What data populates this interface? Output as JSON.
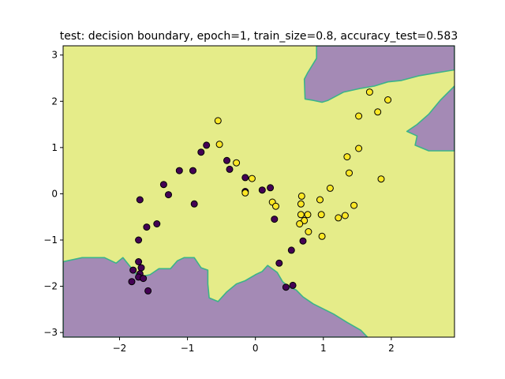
{
  "chart_data": {
    "type": "scatter",
    "title": "test: decision boundary, epoch=1, train_size=0.8, accuracy_test=0.583",
    "xlabel": "",
    "ylabel": "",
    "xlim": [
      -2.83,
      2.93
    ],
    "ylim": [
      -3.1,
      3.2
    ],
    "x_ticks": [
      -2,
      -1,
      0,
      1,
      2
    ],
    "x_tick_labels": [
      "−2",
      "−1",
      "0",
      "1",
      "2"
    ],
    "y_ticks": [
      -3,
      -2,
      -1,
      0,
      1,
      2,
      3
    ],
    "y_tick_labels": [
      "−3",
      "−2",
      "−1",
      "0",
      "1",
      "2",
      "3"
    ],
    "grid": false,
    "legend": "none",
    "colors": {
      "class_0_region": "#a48ab5",
      "class_1_region": "#e5ec89",
      "boundary": "#3bb38a",
      "class_0_point": "#440154",
      "class_1_point": "#fde725",
      "point_edge": "#000000"
    },
    "decision_regions": [
      {
        "class": 0,
        "polygon": [
          [
            0.9,
            3.2
          ],
          [
            2.93,
            3.2
          ],
          [
            2.93,
            2.68
          ],
          [
            2.68,
            2.62
          ],
          [
            2.4,
            2.55
          ],
          [
            2.15,
            2.45
          ],
          [
            1.95,
            2.42
          ],
          [
            1.75,
            2.33
          ],
          [
            1.55,
            2.28
          ],
          [
            1.3,
            2.2
          ],
          [
            1.07,
            2.02
          ],
          [
            0.98,
            1.98
          ],
          [
            0.85,
            2.02
          ],
          [
            0.73,
            2.05
          ],
          [
            0.72,
            2.48
          ],
          [
            0.77,
            2.62
          ],
          [
            0.9,
            2.93
          ]
        ]
      },
      {
        "class": 0,
        "polygon": [
          [
            2.93,
            2.33
          ],
          [
            2.72,
            2.02
          ],
          [
            2.55,
            1.72
          ],
          [
            2.38,
            1.5
          ],
          [
            2.23,
            1.35
          ],
          [
            2.38,
            1.25
          ],
          [
            2.35,
            1.05
          ],
          [
            2.55,
            0.93
          ],
          [
            2.93,
            0.93
          ]
        ]
      },
      {
        "class": 0,
        "polygon": [
          [
            -2.83,
            -1.47
          ],
          [
            -2.55,
            -1.38
          ],
          [
            -2.22,
            -1.38
          ],
          [
            -2.05,
            -1.5
          ],
          [
            -1.95,
            -1.38
          ],
          [
            -1.72,
            -1.8
          ],
          [
            -1.55,
            -1.75
          ],
          [
            -1.42,
            -1.62
          ],
          [
            -1.25,
            -1.62
          ],
          [
            -1.15,
            -1.45
          ],
          [
            -1.05,
            -1.38
          ],
          [
            -0.9,
            -1.38
          ],
          [
            -0.8,
            -1.6
          ],
          [
            -0.7,
            -1.65
          ],
          [
            -0.7,
            -1.95
          ],
          [
            -0.68,
            -2.25
          ],
          [
            -0.55,
            -2.33
          ],
          [
            -0.42,
            -2.12
          ],
          [
            -0.28,
            -1.95
          ],
          [
            -0.15,
            -1.88
          ],
          [
            0.0,
            -1.75
          ],
          [
            0.1,
            -1.68
          ],
          [
            0.18,
            -1.55
          ],
          [
            0.32,
            -1.7
          ],
          [
            0.4,
            -1.9
          ],
          [
            0.5,
            -2.02
          ],
          [
            0.6,
            -2.08
          ],
          [
            0.7,
            -2.23
          ],
          [
            0.85,
            -2.38
          ],
          [
            1.15,
            -2.6
          ],
          [
            1.35,
            -2.78
          ],
          [
            1.55,
            -2.95
          ],
          [
            1.65,
            -3.1
          ],
          [
            -2.83,
            -3.1
          ]
        ]
      }
    ],
    "series": [
      {
        "class": 0,
        "x": [
          -1.7,
          -0.72,
          -0.8,
          -1.12,
          -0.92,
          -0.9,
          -1.35,
          -1.28,
          -1.45,
          -1.6,
          -1.72,
          -1.72,
          -1.68,
          -1.8,
          -1.7,
          -1.72,
          -1.65,
          -1.82,
          -1.58,
          -0.42,
          -0.38,
          -0.15,
          -0.15,
          0.1,
          0.22,
          0.28,
          0.35,
          0.45,
          0.53,
          0.55,
          0.7
        ],
        "y": [
          -0.13,
          1.05,
          0.9,
          0.5,
          0.5,
          -0.22,
          0.2,
          -0.02,
          -0.65,
          -0.72,
          -1.0,
          -1.47,
          -1.6,
          -1.65,
          -1.73,
          -1.8,
          -1.83,
          -1.9,
          -2.1,
          0.72,
          0.53,
          0.35,
          0.05,
          0.08,
          0.13,
          -0.55,
          -1.5,
          -2.02,
          -1.22,
          -1.98,
          -1.02
        ]
      },
      {
        "class": 1,
        "x": [
          -0.55,
          -0.53,
          -0.28,
          -0.05,
          -0.15,
          0.25,
          0.3,
          0.68,
          0.67,
          0.67,
          0.72,
          0.77,
          0.78,
          0.65,
          0.95,
          0.97,
          0.98,
          1.1,
          1.22,
          1.32,
          1.35,
          1.38,
          1.45,
          1.52,
          1.52,
          1.68,
          1.8,
          1.85,
          1.95
        ],
        "y": [
          1.58,
          1.07,
          0.67,
          0.33,
          0.02,
          -0.18,
          -0.27,
          -0.05,
          -0.22,
          -0.45,
          -0.58,
          -0.45,
          -0.82,
          -0.65,
          -0.13,
          -0.45,
          -0.92,
          0.12,
          -0.52,
          -0.47,
          0.8,
          0.45,
          -0.25,
          1.68,
          0.98,
          2.2,
          1.77,
          0.32,
          2.03
        ]
      }
    ]
  }
}
